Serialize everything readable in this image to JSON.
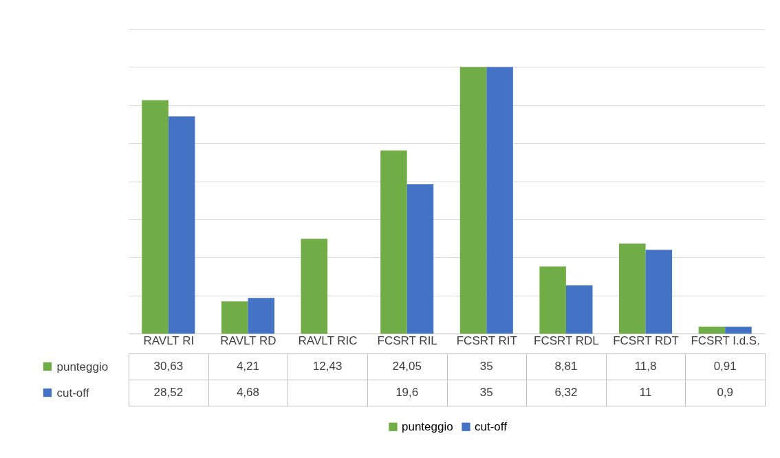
{
  "chart_data": {
    "type": "bar",
    "categories": [
      "RAVLT RI",
      "RAVLT RD",
      "RAVLT RIC",
      "FCSRT RIL",
      "FCSRT RIT",
      "FCSRT RDL",
      "FCSRT RDT",
      "FCSRT I.d.S."
    ],
    "series": [
      {
        "name": "punteggio",
        "color": "#70ad47",
        "values": [
          30.63,
          4.21,
          12.43,
          24.05,
          35,
          8.81,
          11.8,
          0.91
        ],
        "value_labels": [
          "30,63",
          "4,21",
          "12,43",
          "24,05",
          "35",
          "8,81",
          "11,8",
          "0,91"
        ]
      },
      {
        "name": "cut-off",
        "color": "#4472c4",
        "values": [
          28.52,
          4.68,
          null,
          19.6,
          35,
          6.32,
          11,
          0.9
        ],
        "value_labels": [
          "28,52",
          "4,68",
          null,
          "19,6",
          "35",
          "6,32",
          "11",
          "0,9"
        ]
      }
    ],
    "ylim": [
      0,
      40
    ],
    "yticks": [
      {
        "value": 0,
        "label": null
      },
      {
        "value": 5,
        "label": null
      },
      {
        "value": 10,
        "label": null
      },
      {
        "value": 15,
        "label": null
      },
      {
        "value": 20,
        "label": null
      },
      {
        "value": 25,
        "label": null
      },
      {
        "value": 30,
        "label": null
      },
      {
        "value": 35,
        "label": null
      },
      {
        "value": 40,
        "label": null
      }
    ],
    "tick_labels": "x",
    "grid": "y",
    "legend": "bottom"
  }
}
